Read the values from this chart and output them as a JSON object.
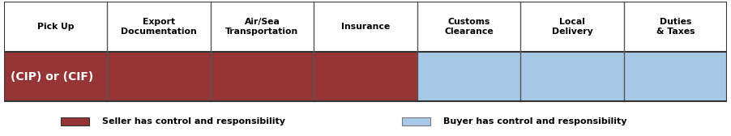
{
  "columns": [
    "Pick Up",
    "Export\nDocumentation",
    "Air/Sea\nTransportation",
    "Insurance",
    "Customs\nClearance",
    "Local\nDelivery",
    "Duties\n& Taxes"
  ],
  "col_widths": [
    1,
    1,
    1,
    1,
    1,
    1,
    1
  ],
  "seller_cols": 4,
  "buyer_cols": 3,
  "row_label": "(CIP) or (CIF)",
  "seller_color": "#963535",
  "buyer_color": "#A8C8E8",
  "border_color": "#333333",
  "divider_color": "#555555",
  "legend_seller_label": "Seller has control and responsibility",
  "legend_buyer_label": "Buyer has control and responsibility",
  "fig_width": 9.02,
  "fig_height": 1.68,
  "dpi": 100
}
